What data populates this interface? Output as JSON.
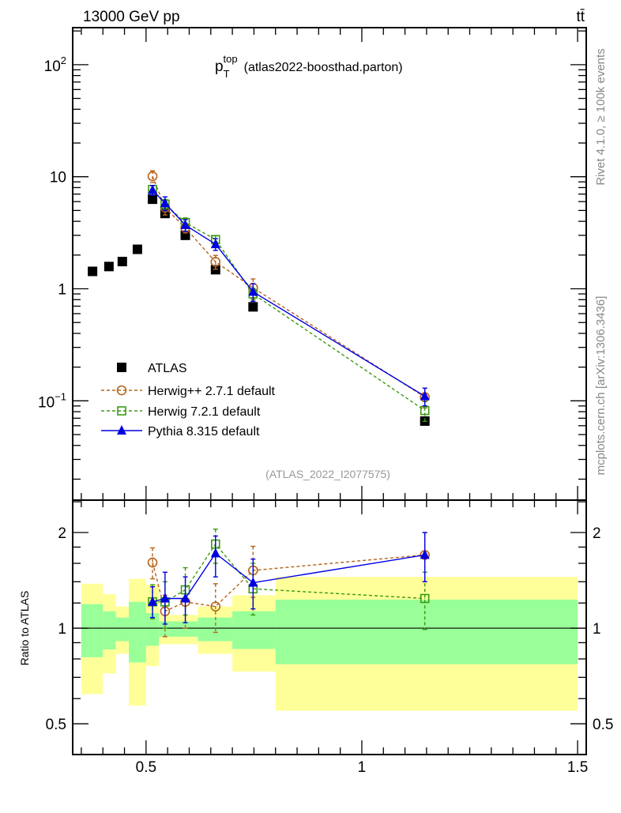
{
  "header": {
    "energy_label": "13000 GeV pp",
    "process_label": "tt̄"
  },
  "side_labels": {
    "rivet": "Rivet 4.1.0, ≥ 100k events",
    "mcplots": "mcplots.cern.ch [arXiv:1306.3436]"
  },
  "colors": {
    "atlas": "#000000",
    "herwigpp": "#b5651d",
    "herwig7": "#3a9a10",
    "pythia": "#0000e0",
    "band_inner": "#99ff99",
    "band_outer": "#ffff99"
  },
  "chart_data": [
    {
      "type": "scatter",
      "title_main": "p",
      "title_sub": "T",
      "title_sup": "top",
      "title_rest": "(atlas2022-boosthad.parton)",
      "analysis_label": "(ATLAS_2022_I2077575)",
      "xlim": [
        0.33,
        1.52
      ],
      "ylim": [
        0.013,
        214
      ],
      "yscale": "log",
      "ytick_labels": [
        {
          "v": 100,
          "base": "10",
          "exp": "2"
        },
        {
          "v": 10,
          "text": "10"
        },
        {
          "v": 1,
          "text": "1"
        },
        {
          "v": 0.1,
          "base": "10",
          "exp": "−1"
        }
      ],
      "legend_position": "bottom-left",
      "series": [
        {
          "name": "ATLAS",
          "key": "atlas",
          "marker": "square-filled",
          "line": "none",
          "x": [
            0.376,
            0.414,
            0.445,
            0.48,
            0.515,
            0.544,
            0.591,
            0.661,
            0.748,
            1.146
          ],
          "y": [
            1.43,
            1.58,
            1.75,
            2.25,
            6.3,
            4.7,
            3.0,
            1.48,
            0.69,
            0.066
          ]
        },
        {
          "name": "Herwig++ 2.7.1 default",
          "key": "herwigpp",
          "marker": "circle-open",
          "line": "dashed",
          "x": [
            0.515,
            0.544,
            0.591,
            0.661,
            0.748,
            1.146
          ],
          "y": [
            10.1,
            5.3,
            3.5,
            1.74,
            1.02,
            0.108
          ],
          "yerr_rel": [
            0.12,
            0.14,
            0.1,
            0.14,
            0.2,
            0.2
          ]
        },
        {
          "name": "Herwig 7.2.1 default",
          "key": "herwig7",
          "marker": "square-open",
          "line": "dashed",
          "x": [
            0.515,
            0.544,
            0.591,
            0.661,
            0.748,
            1.146
          ],
          "y": [
            7.7,
            5.7,
            3.9,
            2.75,
            0.9,
            0.082
          ],
          "yerr_rel": [
            0.08,
            0.1,
            0.1,
            0.08,
            0.12,
            0.2
          ]
        },
        {
          "name": "Pythia 8.315 default",
          "key": "pythia",
          "marker": "triangle-filled",
          "line": "solid",
          "x": [
            0.515,
            0.544,
            0.591,
            0.661,
            0.748,
            1.146
          ],
          "y": [
            7.6,
            5.8,
            3.7,
            2.5,
            0.94,
            0.11
          ],
          "yerr_rel": [
            0.1,
            0.14,
            0.12,
            0.12,
            0.18,
            0.18
          ]
        }
      ]
    },
    {
      "type": "scatter",
      "ylabel": "Ratio to ATLAS",
      "xlim": [
        0.33,
        1.52
      ],
      "ylim": [
        0.4,
        2.53
      ],
      "yscale": "log",
      "xtick_labels": [
        {
          "v": 0.5,
          "text": "0.5"
        },
        {
          "v": 1,
          "text": "1"
        },
        {
          "v": 1.5,
          "text": "1.5"
        }
      ],
      "ytick_labels": [
        {
          "v": 2,
          "text": "2"
        },
        {
          "v": 1,
          "text": "1"
        },
        {
          "v": 0.5,
          "text": "0.5"
        }
      ],
      "bands": {
        "bin_edges": [
          0.35,
          0.4,
          0.43,
          0.46,
          0.5,
          0.53,
          0.62,
          0.7,
          0.8,
          1.5
        ],
        "outer_hi": [
          1.38,
          1.28,
          1.17,
          1.43,
          1.37,
          1.1,
          1.17,
          1.27,
          1.45
        ],
        "inner_hi": [
          1.19,
          1.13,
          1.08,
          1.21,
          1.115,
          1.05,
          1.08,
          1.13,
          1.23
        ],
        "inner_lo": [
          0.81,
          0.857,
          0.91,
          0.78,
          0.88,
          0.94,
          0.91,
          0.86,
          0.77
        ],
        "outer_lo": [
          0.62,
          0.72,
          0.83,
          0.57,
          0.76,
          0.89,
          0.83,
          0.73,
          0.55
        ]
      },
      "series": [
        {
          "key": "herwigpp",
          "x": [
            0.515,
            0.544,
            0.591,
            0.661,
            0.748,
            1.146
          ],
          "y": [
            1.61,
            1.13,
            1.21,
            1.17,
            1.52,
            1.7
          ],
          "lo": [
            1.43,
            0.94,
            1.0,
            0.97,
            1.25,
            1.4
          ],
          "hi": [
            1.79,
            1.27,
            1.25,
            1.38,
            1.81,
            2.0
          ]
        },
        {
          "key": "herwig7",
          "x": [
            0.515,
            0.544,
            0.591,
            0.661,
            0.748,
            1.146
          ],
          "y": [
            1.21,
            1.21,
            1.32,
            1.84,
            1.33,
            1.24
          ],
          "lo": [
            1.07,
            1.0,
            1.1,
            1.6,
            1.1,
            0.99
          ],
          "hi": [
            1.37,
            1.4,
            1.55,
            2.05,
            1.6,
            1.5
          ]
        },
        {
          "key": "pythia",
          "x": [
            0.515,
            0.544,
            0.591,
            0.661,
            0.748,
            1.146
          ],
          "y": [
            1.21,
            1.24,
            1.24,
            1.72,
            1.39,
            1.7
          ],
          "lo": [
            1.08,
            1.03,
            1.04,
            1.45,
            1.15,
            1.4
          ],
          "hi": [
            1.35,
            1.5,
            1.45,
            1.95,
            1.65,
            2.0
          ]
        }
      ]
    }
  ]
}
